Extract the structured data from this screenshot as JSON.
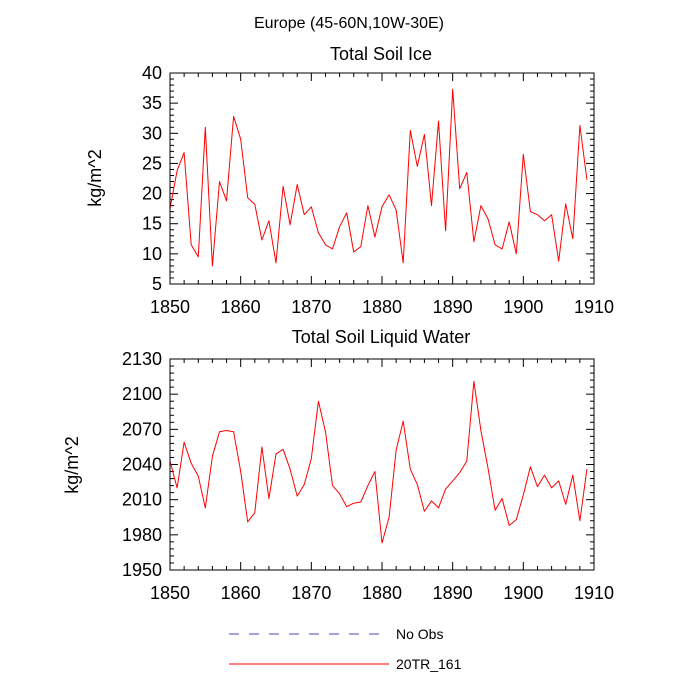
{
  "title": "Europe (45-60N,10W-30E)",
  "chart_data": [
    {
      "type": "line",
      "title": "Total Soil Ice",
      "xlabel": "",
      "ylabel": "kg/m^2",
      "xlim": [
        1850,
        1910
      ],
      "ylim": [
        5,
        40
      ],
      "x_ticks": [
        1850,
        1860,
        1870,
        1880,
        1890,
        1900,
        1910
      ],
      "y_ticks": [
        5,
        10,
        15,
        20,
        25,
        30,
        35,
        40
      ],
      "x_tick_labels": [
        "1850",
        "1860",
        "1870",
        "1880",
        "1890",
        "1900",
        "1910"
      ],
      "y_tick_labels": [
        "5",
        "10",
        "15",
        "20",
        "25",
        "30",
        "35",
        "40"
      ],
      "series": [
        {
          "name": "20TR_161",
          "color": "#ff0000",
          "x": [
            1850,
            1851,
            1852,
            1853,
            1854,
            1855,
            1856,
            1857,
            1858,
            1859,
            1860,
            1861,
            1862,
            1863,
            1864,
            1865,
            1866,
            1867,
            1868,
            1869,
            1870,
            1871,
            1872,
            1873,
            1874,
            1875,
            1876,
            1877,
            1878,
            1879,
            1880,
            1881,
            1882,
            1883,
            1884,
            1885,
            1886,
            1887,
            1888,
            1889,
            1890,
            1891,
            1892,
            1893,
            1894,
            1895,
            1896,
            1897,
            1898,
            1899,
            1900,
            1901,
            1902,
            1903,
            1904,
            1905,
            1906,
            1907,
            1908,
            1909
          ],
          "values": [
            17.5,
            23.8,
            26.8,
            11.5,
            9.5,
            31.0,
            8.0,
            22.0,
            18.8,
            32.8,
            29.0,
            19.3,
            18.2,
            12.3,
            15.5,
            8.5,
            21.2,
            14.8,
            21.5,
            16.5,
            17.8,
            13.5,
            11.5,
            10.8,
            14.5,
            16.8,
            10.3,
            11.2,
            18.0,
            12.8,
            17.8,
            19.8,
            17.3,
            8.5,
            30.5,
            24.5,
            29.8,
            18.0,
            32.0,
            13.8,
            37.3,
            20.8,
            23.5,
            12.0,
            18.0,
            15.8,
            11.5,
            10.8,
            15.3,
            10.0,
            26.5,
            17.0,
            16.5,
            15.5,
            16.5,
            8.8,
            18.3,
            12.5,
            31.3,
            22.3
          ]
        }
      ]
    },
    {
      "type": "line",
      "title": "Total Soil Liquid Water",
      "xlabel": "",
      "ylabel": "kg/m^2",
      "xlim": [
        1850,
        1910
      ],
      "ylim": [
        1950,
        2130
      ],
      "x_ticks": [
        1850,
        1860,
        1870,
        1880,
        1890,
        1900,
        1910
      ],
      "y_ticks": [
        1950,
        1980,
        2010,
        2040,
        2070,
        2100,
        2130
      ],
      "x_tick_labels": [
        "1850",
        "1860",
        "1870",
        "1880",
        "1890",
        "1900",
        "1910"
      ],
      "y_tick_labels": [
        "1950",
        "1980",
        "2010",
        "2040",
        "2070",
        "2100",
        "2130"
      ],
      "series": [
        {
          "name": "20TR_161",
          "color": "#ff0000",
          "x": [
            1850,
            1851,
            1852,
            1853,
            1854,
            1855,
            1856,
            1857,
            1858,
            1859,
            1860,
            1861,
            1862,
            1863,
            1864,
            1865,
            1866,
            1867,
            1868,
            1869,
            1870,
            1871,
            1872,
            1873,
            1874,
            1875,
            1876,
            1877,
            1878,
            1879,
            1880,
            1881,
            1882,
            1883,
            1884,
            1885,
            1886,
            1887,
            1888,
            1889,
            1890,
            1891,
            1892,
            1893,
            1894,
            1895,
            1896,
            1897,
            1898,
            1899,
            1900,
            1901,
            1902,
            1903,
            1904,
            1905,
            1906,
            1907,
            1908,
            1909
          ],
          "values": [
            2043,
            2020,
            2059,
            2041,
            2030,
            2003,
            2047,
            2068,
            2069,
            2068,
            2034,
            1991,
            1999,
            2055,
            2011,
            2049,
            2053,
            2036,
            2013,
            2023,
            2045,
            2094,
            2068,
            2022,
            2015,
            2004,
            2007,
            2008,
            2022,
            2034,
            1973,
            1995,
            2052,
            2077,
            2036,
            2023,
            2000,
            2009,
            2003,
            2019,
            2026,
            2033,
            2043,
            2111,
            2069,
            2037,
            2001,
            2011,
            1988,
            1993,
            2014,
            2038,
            2021,
            2031,
            2020,
            2026,
            2006,
            2031,
            1992,
            2036
          ]
        }
      ]
    }
  ],
  "legend": [
    {
      "label": "No Obs",
      "color": "#4a4ab8",
      "style": "dashed"
    },
    {
      "label": "20TR_161",
      "color": "#ff0000",
      "style": "solid"
    }
  ]
}
